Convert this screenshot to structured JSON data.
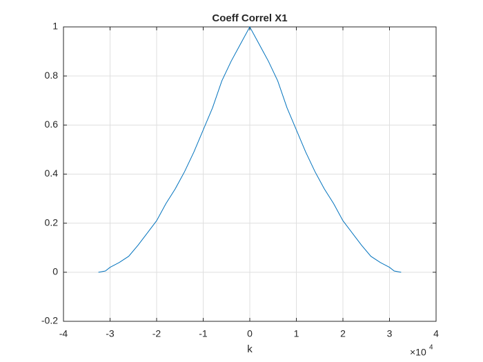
{
  "chart_data": {
    "type": "line",
    "title": "Coeff Correl X1",
    "x_label": "k",
    "x_multiplier": {
      "base": "×10",
      "exponent": "4"
    },
    "x": [
      -3.25,
      -3.1,
      -3.0,
      -2.8,
      -2.6,
      -2.4,
      -2.2,
      -2.0,
      -1.8,
      -1.6,
      -1.4,
      -1.2,
      -1.0,
      -0.8,
      -0.6,
      -0.4,
      -0.2,
      0,
      0.2,
      0.4,
      0.6,
      0.8,
      1.0,
      1.2,
      1.4,
      1.6,
      1.8,
      2.0,
      2.2,
      2.4,
      2.6,
      2.8,
      3.0,
      3.1,
      3.25
    ],
    "series": [
      {
        "color": "#0072bd",
        "values": [
          0,
          0.005,
          0.02,
          0.04,
          0.065,
          0.11,
          0.16,
          0.21,
          0.28,
          0.34,
          0.41,
          0.49,
          0.58,
          0.67,
          0.78,
          0.86,
          0.93,
          1,
          0.93,
          0.86,
          0.78,
          0.67,
          0.58,
          0.49,
          0.41,
          0.34,
          0.28,
          0.21,
          0.16,
          0.11,
          0.065,
          0.04,
          0.02,
          0.005,
          0
        ]
      }
    ],
    "xlim": [
      -4,
      4
    ],
    "xticks": [
      -4,
      -3,
      -2,
      -1,
      0,
      1,
      2,
      3,
      4
    ],
    "ylim": [
      -0.2,
      1
    ],
    "yticks": [
      -0.2,
      0,
      0.2,
      0.4,
      0.6,
      0.8,
      1
    ],
    "grid": true
  }
}
